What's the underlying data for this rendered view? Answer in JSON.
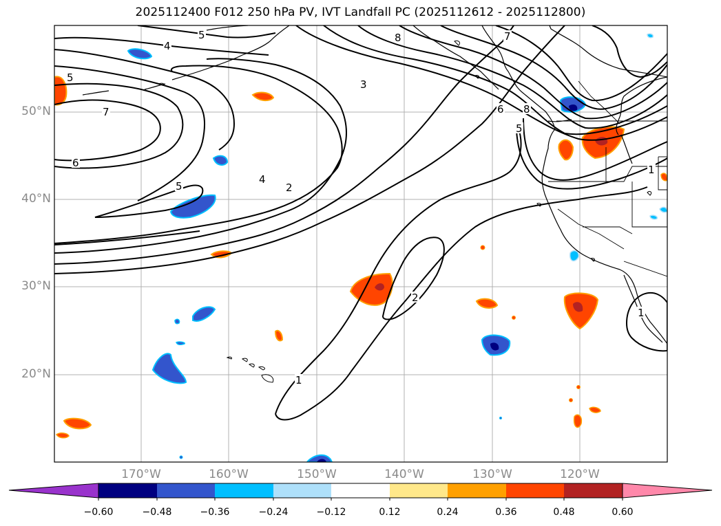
{
  "title": "2025112400 F012 250 hPa PV, IVT Landfall PC (2025112612 - 2025112800)",
  "map": {
    "lon_range": [
      -180,
      -110
    ],
    "lat_range": [
      10,
      60
    ],
    "lon_labels": [
      "170°W",
      "160°W",
      "150°W",
      "140°W",
      "130°W",
      "120°W"
    ],
    "lat_labels": [
      "50°N",
      "40°N",
      "30°N",
      "20°N"
    ],
    "contour_labels": [
      "5",
      "4",
      "8",
      "7",
      "5",
      "3",
      "7",
      "6",
      "6",
      "8",
      "5",
      "4",
      "2",
      "5",
      "1",
      "2",
      "1",
      "1"
    ]
  },
  "colorbar": {
    "ticks": [
      "−0.60",
      "−0.48",
      "−0.36",
      "−0.24",
      "−0.12",
      "0.12",
      "0.24",
      "0.36",
      "0.48",
      "0.60"
    ],
    "colors": [
      "#9933cc",
      "#000080",
      "#3355cc",
      "#00bfff",
      "#aee0fa",
      "#ffffff",
      "#ffe88a",
      "#ffa000",
      "#ff4500",
      "#b22222",
      "#ff88aa"
    ]
  }
}
